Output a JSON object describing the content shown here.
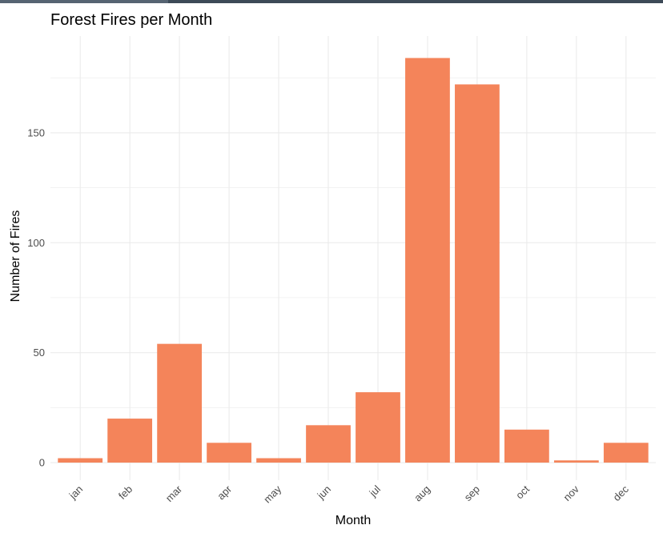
{
  "chart_data": {
    "type": "bar",
    "title": "Forest Fires per Month",
    "xlabel": "Month",
    "ylabel": "Number of Fires",
    "categories": [
      "jan",
      "feb",
      "mar",
      "apr",
      "may",
      "jun",
      "jul",
      "aug",
      "sep",
      "oct",
      "nov",
      "dec"
    ],
    "values": [
      2,
      20,
      54,
      9,
      2,
      17,
      32,
      184,
      172,
      15,
      1,
      9
    ],
    "yticks": [
      0,
      50,
      100,
      150
    ],
    "ylim": [
      -8,
      194
    ],
    "grid": true,
    "bar_color": "#f4845a",
    "grid_color": "#ebebeb"
  }
}
